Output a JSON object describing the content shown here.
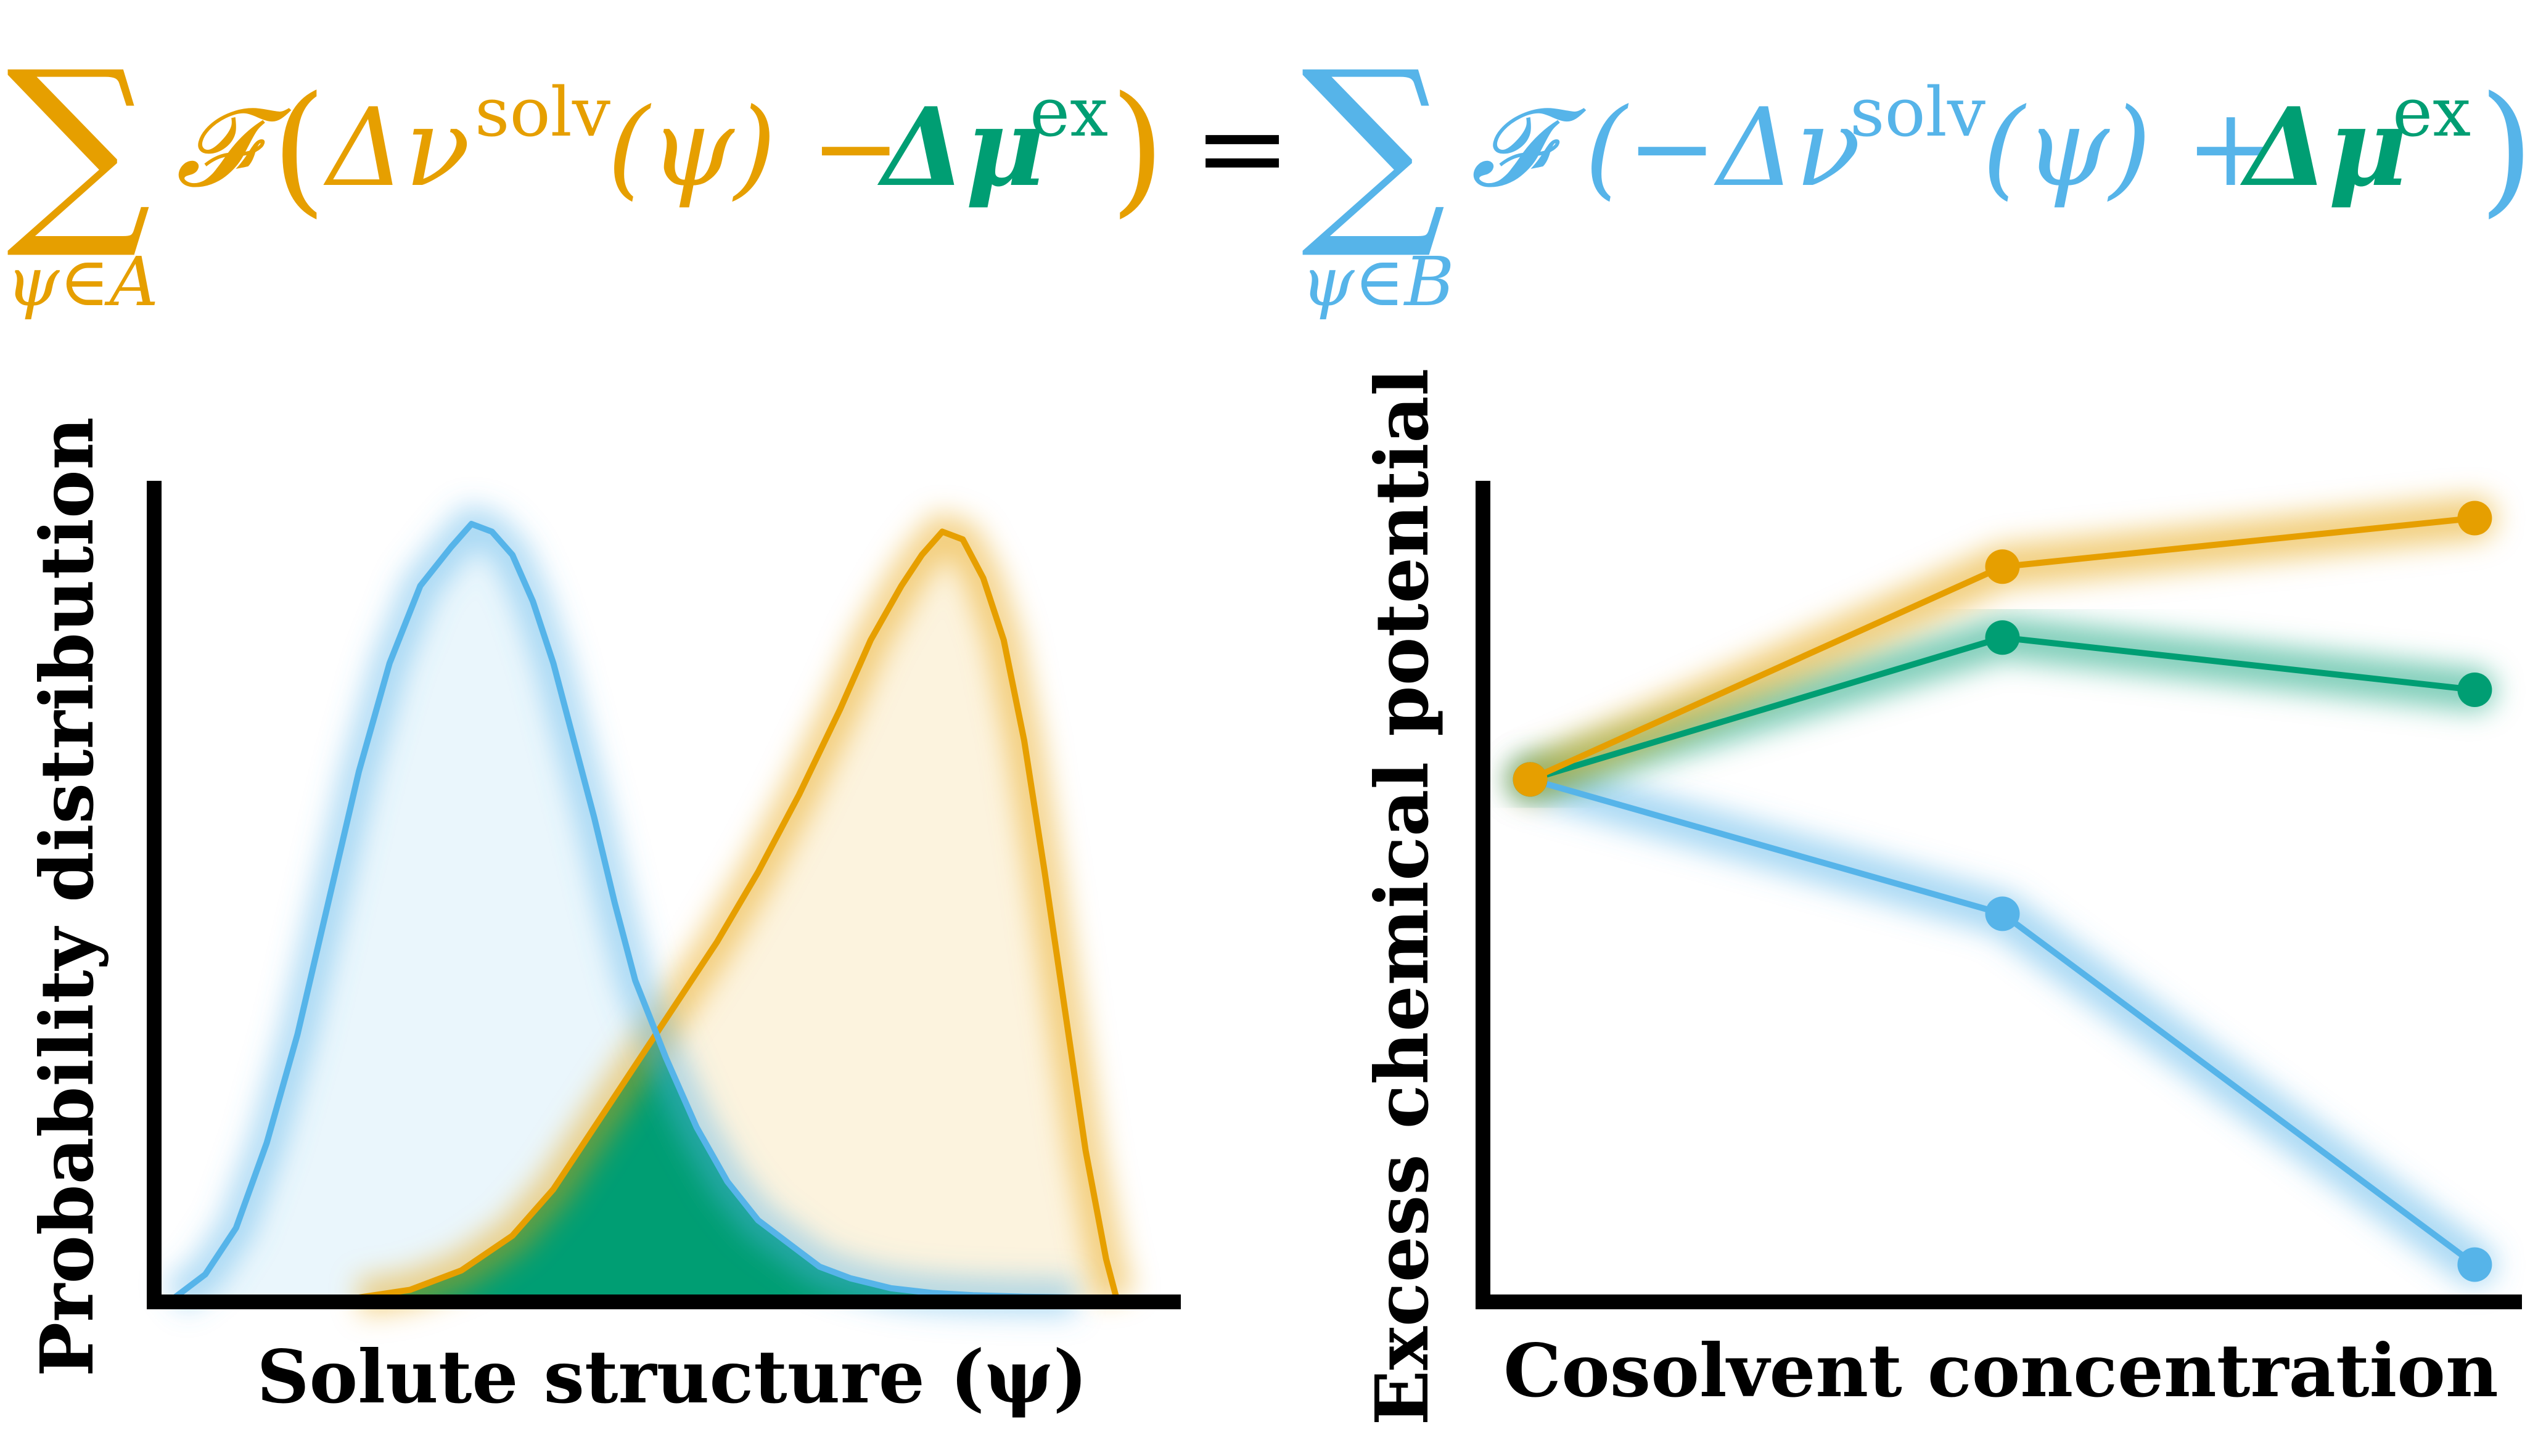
{
  "colors": {
    "orange": "#E69F00",
    "blue": "#56B4E9",
    "green": "#009E73",
    "axis": "#000000"
  },
  "equation": {
    "lhs_sum": "∑",
    "lhs_sub": "ψ∈A",
    "lhs_F": "𝓕",
    "lhs_open": "(",
    "lhs_dnu": "Δν",
    "lhs_sup": "solv",
    "lhs_arg": "(ψ) −",
    "lhs_dmu": "Δμ",
    "lhs_dmu_sup": "ex",
    "lhs_close": ")",
    "equals": "=",
    "rhs_sum": "∑",
    "rhs_sub": "ψ∈B",
    "rhs_F": "𝓕",
    "rhs_open": "(−Δν",
    "rhs_sup": "solv",
    "rhs_arg": "(ψ) +",
    "rhs_dmu": "Δμ",
    "rhs_dmu_sup": "ex",
    "rhs_close": ")"
  },
  "chart_data": [
    {
      "type": "area",
      "xlabel": "Solute structure (ψ)",
      "ylabel": "Probability distribution",
      "xlim": [
        0,
        1
      ],
      "ylim": [
        0,
        1
      ],
      "legend": "none",
      "grid": false,
      "series": [
        {
          "color": "#56B4E9",
          "x": [
            0.02,
            0.05,
            0.08,
            0.11,
            0.14,
            0.17,
            0.2,
            0.23,
            0.26,
            0.29,
            0.31,
            0.33,
            0.35,
            0.37,
            0.39,
            0.41,
            0.43,
            0.45,
            0.47,
            0.5,
            0.53,
            0.56,
            0.59,
            0.62,
            0.65,
            0.68,
            0.72,
            0.76,
            0.8,
            0.85,
            0.9
          ],
          "y": [
            0.0,
            0.03,
            0.09,
            0.2,
            0.34,
            0.51,
            0.68,
            0.82,
            0.92,
            0.97,
            1.0,
            0.99,
            0.96,
            0.9,
            0.82,
            0.72,
            0.62,
            0.51,
            0.41,
            0.31,
            0.22,
            0.15,
            0.1,
            0.07,
            0.04,
            0.025,
            0.012,
            0.006,
            0.003,
            0.001,
            0.0
          ]
        },
        {
          "color": "#E69F00",
          "x": [
            0.2,
            0.25,
            0.3,
            0.35,
            0.39,
            0.43,
            0.47,
            0.51,
            0.55,
            0.59,
            0.63,
            0.67,
            0.7,
            0.73,
            0.75,
            0.77,
            0.79,
            0.81,
            0.83,
            0.85,
            0.87,
            0.89,
            0.91,
            0.93,
            0.94
          ],
          "y": [
            0.0,
            0.01,
            0.035,
            0.08,
            0.14,
            0.22,
            0.3,
            0.38,
            0.46,
            0.55,
            0.65,
            0.76,
            0.85,
            0.92,
            0.96,
            0.99,
            0.98,
            0.93,
            0.85,
            0.72,
            0.55,
            0.37,
            0.19,
            0.05,
            0.0
          ]
        }
      ]
    },
    {
      "type": "line",
      "xlabel": "Cosolvent concentration",
      "ylabel": "Excess chemical potential",
      "x": [
        0,
        1,
        2
      ],
      "xlim": [
        -0.1,
        2.1
      ],
      "ylim": [
        0,
        1.1
      ],
      "legend": "none",
      "grid": false,
      "series": [
        {
          "color": "#E69F00",
          "values": [
            0.7,
            0.985,
            1.05
          ]
        },
        {
          "color": "#009E73",
          "values": [
            0.7,
            0.89,
            0.82
          ]
        },
        {
          "color": "#56B4E9",
          "values": [
            0.7,
            0.52,
            0.05
          ]
        }
      ]
    }
  ]
}
